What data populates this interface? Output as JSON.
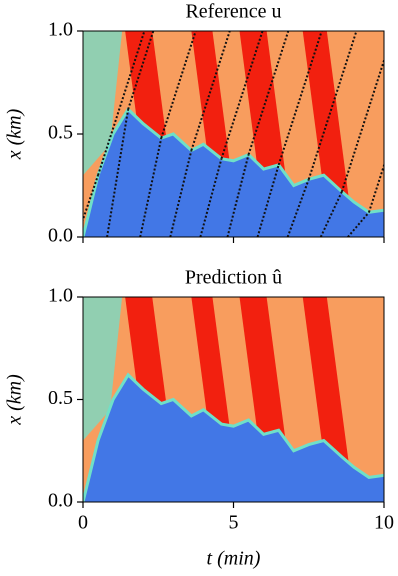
{
  "chart_data": [
    {
      "type": "heatmap",
      "title": "Reference u",
      "ylabel": "x (km)",
      "xlim": [
        0,
        10
      ],
      "xticks": [
        0,
        5,
        10
      ],
      "ylim": [
        0,
        1
      ],
      "yticks": [
        {
          "value": 0,
          "label": "0.0"
        },
        {
          "value": 0.5,
          "label": "0.5"
        },
        {
          "value": 1,
          "label": "1.0"
        }
      ]
    },
    {
      "type": "heatmap",
      "title": "Prediction û",
      "ylabel": "x (km)",
      "xlabel": "t (min)",
      "xlim": [
        0,
        10
      ],
      "xticks": [
        0,
        5,
        10
      ],
      "ylim": [
        0,
        1
      ],
      "yticks": [
        {
          "value": 0,
          "label": "0.0"
        },
        {
          "value": 0.5,
          "label": "0.5"
        },
        {
          "value": 1,
          "label": "1.0"
        }
      ]
    }
  ]
}
